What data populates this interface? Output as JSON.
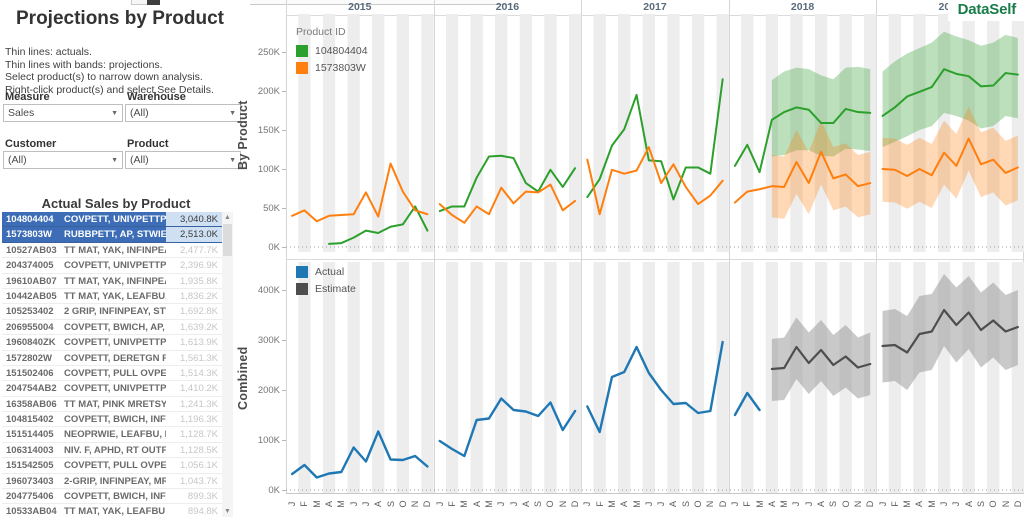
{
  "brand": {
    "logo": "DataSelf",
    "logo_color": "#1a7c4a"
  },
  "sidebar": {
    "title": "Projections by Product",
    "instructions": "Thin lines: actuals.\nThin lines with bands: projections.\nSelect product(s) to narrow down analysis.\nRight-click product(s) and select See Details.",
    "filters": [
      {
        "label": "Measure",
        "value": "Sales"
      },
      {
        "label": "Warehouse",
        "value": "(All)"
      },
      {
        "label": "Customer",
        "value": "(All)"
      },
      {
        "label": "Product",
        "value": "(All)"
      }
    ],
    "table": {
      "title": "Actual Sales by Product",
      "selected_row_color": "#3d6db6",
      "rows": [
        {
          "id": "104804404",
          "desc": "COVPETT, UNIVPETTPET..",
          "value": "3,040.8K",
          "selected": true
        },
        {
          "id": "1573803W",
          "desc": "RUBBPETT, AP, STWIE, ..",
          "value": "2,513.0K",
          "selected": true
        },
        {
          "id": "10527AB03",
          "desc": "TT MAT, YAK, INFINPEA..",
          "value": "2,477.7K",
          "selected": false
        },
        {
          "id": "204374005",
          "desc": "COVPETT, UNIVPETTPET..",
          "value": "2,396.9K",
          "selected": false
        },
        {
          "id": "19610AB07",
          "desc": "TT MAT, YAK, INFINPEA..",
          "value": "1,935.8K",
          "selected": false
        },
        {
          "id": "10442AB05",
          "desc": "TT MAT, YAK, LEAFBU, ..",
          "value": "1,836.2K",
          "selected": false
        },
        {
          "id": "105253402",
          "desc": "2 GRIP, INFINPEAY, STWI..",
          "value": "1,692.8K",
          "selected": false
        },
        {
          "id": "206955004",
          "desc": "COVPETT, BWICH, AP, S..",
          "value": "1,639.2K",
          "selected": false
        },
        {
          "id": "1960840ZK",
          "desc": "COVPETT, UNIVPETTPET..",
          "value": "1,613.9K",
          "selected": false
        },
        {
          "id": "1572802W",
          "desc": "COVPETT, DERETGN F, T..",
          "value": "1,561.3K",
          "selected": false
        },
        {
          "id": "151502406",
          "desc": "COVPETT, PULL OVPETT..",
          "value": "1,514.3K",
          "selected": false
        },
        {
          "id": "204754AB2",
          "desc": "COVPETT, UNIVPETTPE..",
          "value": "1,410.2K",
          "selected": false
        },
        {
          "id": "16358AB06",
          "desc": "TT MAT, PINK MRETSY ..",
          "value": "1,241.3K",
          "selected": false
        },
        {
          "id": "104815402",
          "desc": "COVPETT, BWICH, INFIN..",
          "value": "1,196.3K",
          "selected": false
        },
        {
          "id": "151514405",
          "desc": "NEOPRWIE, LEAFBU, PIN..",
          "value": "1,128.7K",
          "selected": false
        },
        {
          "id": "106314003",
          "desc": "NIV. F, APHD, RT OUTFP..",
          "value": "1,128.5K",
          "selected": false
        },
        {
          "id": "151542505",
          "desc": "COVPETT, PULL OVPETT..",
          "value": "1,056.1K",
          "selected": false
        },
        {
          "id": "196073403",
          "desc": "2-GRIP, INFINPEAY, MRE..",
          "value": "1,043.7K",
          "selected": false
        },
        {
          "id": "204775406",
          "desc": "COVPETT, BWICH, INFIN..",
          "value": "899.3K",
          "selected": false
        },
        {
          "id": "10533AB04",
          "desc": "TT MAT, YAK, LEAFBU P..",
          "value": "894.8K",
          "selected": false
        }
      ]
    }
  },
  "chart_data": [
    {
      "type": "line",
      "row_label": "By Product",
      "years": [
        "2015",
        "2016",
        "2017",
        "2018",
        "2019"
      ],
      "months": [
        "J",
        "F",
        "M",
        "A",
        "M",
        "J",
        "J",
        "A",
        "S",
        "O",
        "N",
        "D"
      ],
      "ylabel_unit": "K",
      "ylim": [
        0,
        300
      ],
      "yticks": [
        {
          "v": 0,
          "label": "0K"
        },
        {
          "v": 50,
          "label": "50K"
        },
        {
          "v": 100,
          "label": "100K"
        },
        {
          "v": 150,
          "label": "150K"
        },
        {
          "v": 200,
          "label": "200K"
        },
        {
          "v": 250,
          "label": "250K"
        }
      ],
      "legend": {
        "title": "Product ID",
        "items": [
          {
            "label": "104804404",
            "color": "#2ca02c"
          },
          {
            "label": "1573803W",
            "color": "#ff7f0e"
          }
        ]
      },
      "series": [
        {
          "name": "104804404",
          "color": "#2ca02c",
          "band_opacity": 0.32,
          "width": 2,
          "values": {
            "2015": [
              null,
              null,
              null,
              4,
              5,
              12,
              21,
              18,
              26,
              29,
              52,
              21
            ],
            "2016": [
              46,
              52,
              52,
              89,
              116,
              117,
              114,
              82,
              71,
              99,
              77,
              101
            ],
            "2017": [
              64,
              87,
              130,
              151,
              195,
              111,
              110,
              61,
              102,
              102,
              94,
              215
            ],
            "2018": [
              104,
              131,
              96,
              163,
              173,
              179,
              176,
              159,
              159,
              177,
              173,
              172
            ],
            "2019": [
              168,
              179,
              193,
              199,
              205,
              228,
              222,
              219,
              206,
              207,
              223,
              221
            ]
          },
          "band": {
            "2018": {
              "upper": [
                null,
                null,
                null,
                214,
                225,
                230,
                228,
                220,
                215,
                230,
                231,
                228
              ],
              "lower": [
                null,
                null,
                null,
                116,
                118,
                124,
                124,
                117,
                116,
                126,
                125,
                123
              ]
            },
            "2019": {
              "upper": [
                225,
                238,
                248,
                255,
                262,
                276,
                270,
                265,
                258,
                262,
                272,
                268
              ],
              "lower": [
                128,
                135,
                142,
                150,
                155,
                172,
                168,
                162,
                152,
                155,
                168,
                165
              ]
            }
          }
        },
        {
          "name": "1573803W",
          "color": "#ff7f0e",
          "band_opacity": 0.3,
          "width": 2,
          "values": {
            "2015": [
              40,
              47,
              33,
              40,
              41,
              42,
              70,
              39,
              107,
              71,
              47,
              42
            ],
            "2016": [
              55,
              41,
              31,
              52,
              42,
              76,
              56,
              71,
              70,
              80,
              47,
              59
            ],
            "2017": [
              112,
              42,
              99,
              94,
              98,
              128,
              82,
              106,
              77,
              55,
              66,
              85
            ],
            "2018": [
              57,
              71,
              74,
              78,
              77,
              109,
              82,
              122,
              88,
              93,
              78,
              82
            ],
            "2019": [
              100,
              99,
              91,
              100,
              92,
              121,
              104,
              139,
              106,
              112,
              95,
              102
            ]
          },
          "band": {
            "2018": {
              "upper": [
                null,
                null,
                null,
                118,
                116,
                150,
                122,
                162,
                128,
                133,
                118,
                122
              ],
              "lower": [
                null,
                null,
                null,
                38,
                36,
                68,
                42,
                80,
                47,
                52,
                38,
                42
              ]
            },
            "2019": {
              "upper": [
                140,
                139,
                131,
                140,
                132,
                162,
                145,
                180,
                147,
                153,
                136,
                143
              ],
              "lower": [
                58,
                57,
                49,
                58,
                50,
                80,
                62,
                98,
                64,
                70,
                53,
                60
              ]
            }
          }
        }
      ]
    },
    {
      "type": "line",
      "row_label": "Combined",
      "years": [
        "2015",
        "2016",
        "2017",
        "2018",
        "2019"
      ],
      "months": [
        "J",
        "F",
        "M",
        "A",
        "M",
        "J",
        "J",
        "A",
        "S",
        "O",
        "N",
        "D"
      ],
      "ylabel_unit": "K",
      "ylim": [
        0,
        450
      ],
      "yticks": [
        {
          "v": 0,
          "label": "0K"
        },
        {
          "v": 100,
          "label": "100K"
        },
        {
          "v": 200,
          "label": "200K"
        },
        {
          "v": 300,
          "label": "300K"
        },
        {
          "v": 400,
          "label": "400K"
        }
      ],
      "legend": {
        "title": "",
        "items": [
          {
            "label": "Actual",
            "color": "#1f77b4"
          },
          {
            "label": "Estimate",
            "color": "#4e4e4e"
          }
        ]
      },
      "series": [
        {
          "name": "Actual",
          "color": "#1f77b4",
          "width": 2.4,
          "values": {
            "2015": [
              32,
              50,
              25,
              33,
              36,
              85,
              57,
              117,
              61,
              60,
              68,
              47
            ],
            "2016": [
              98,
              82,
              68,
              140,
              143,
              183,
              160,
              157,
              148,
              175,
              120,
              158
            ],
            "2017": [
              167,
              116,
              226,
              236,
              286,
              234,
              200,
              172,
              174,
              154,
              158,
              296
            ],
            "2018": [
              150,
              194,
              160,
              null,
              null,
              null,
              null,
              null,
              null,
              null,
              null,
              null
            ]
          }
        },
        {
          "name": "Estimate",
          "color": "#4e4e4e",
          "band_color": "#8f8f8f",
          "band_opacity": 0.48,
          "width": 2.2,
          "values": {
            "2018": [
              null,
              null,
              null,
              242,
              244,
              286,
              254,
              280,
              250,
              267,
              245,
              252
            ],
            "2019": [
              288,
              290,
              275,
              312,
              317,
              360,
              330,
              355,
              320,
              339,
              317,
              326
            ]
          },
          "band": {
            "2018": {
              "upper": [
                null,
                null,
                null,
                302,
                305,
                345,
                315,
                340,
                310,
                330,
                305,
                315
              ],
              "lower": [
                null,
                null,
                null,
                178,
                180,
                222,
                192,
                218,
                188,
                205,
                183,
                190
              ]
            },
            "2019": {
              "upper": [
                358,
                362,
                348,
                388,
                392,
                432,
                405,
                428,
                395,
                415,
                390,
                400
              ],
              "lower": [
                215,
                218,
                200,
                235,
                240,
                288,
                255,
                282,
                245,
                265,
                240,
                250
              ]
            }
          }
        }
      ]
    }
  ]
}
